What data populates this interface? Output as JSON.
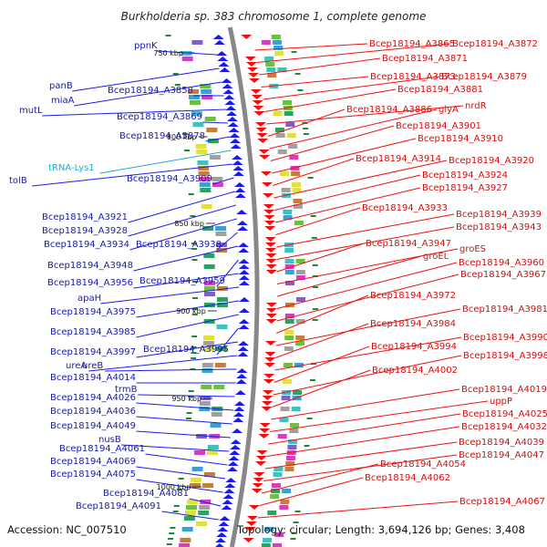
{
  "title": "Burkholderia sp. 383 chromosome 1, complete genome",
  "accession": "Accession: NC_007510",
  "summary": "Topology: circular; Length: 3,694,126 bp; Genes: 3,408",
  "ticks": [
    "750 kbp",
    "800 kbp",
    "850 kbp",
    "900 kbp",
    "950 kbp",
    "1000 kbp"
  ],
  "left_labels": [
    {
      "text": "ppnK",
      "color": "blue"
    },
    {
      "text": "panB",
      "color": "blue"
    },
    {
      "text": "miaA",
      "color": "blue"
    },
    {
      "text": "Bcep18194_A3858",
      "color": "blue"
    },
    {
      "text": "mutL",
      "color": "blue"
    },
    {
      "text": "Bcep18194_A3869",
      "color": "blue"
    },
    {
      "text": "Bcep18194_A3878",
      "color": "blue"
    },
    {
      "text": "tRNA-Lys1",
      "color": "cyan"
    },
    {
      "text": "tolB",
      "color": "blue"
    },
    {
      "text": "Bcep18194_A3909",
      "color": "blue"
    },
    {
      "text": "Bcep18194_A3921",
      "color": "blue"
    },
    {
      "text": "Bcep18194_A3928",
      "color": "blue"
    },
    {
      "text": "Bcep18194_A3934",
      "color": "blue"
    },
    {
      "text": "Bcep18194_A3938",
      "color": "blue"
    },
    {
      "text": "Bcep18194_A3948",
      "color": "blue"
    },
    {
      "text": "Bcep18194_A3959",
      "color": "blue"
    },
    {
      "text": "Bcep18194_A3956",
      "color": "blue"
    },
    {
      "text": "apaH",
      "color": "blue"
    },
    {
      "text": "Bcep18194_A3975",
      "color": "blue"
    },
    {
      "text": "Bcep18194_A3985",
      "color": "blue"
    },
    {
      "text": "Bcep18194_A3995",
      "color": "blue"
    },
    {
      "text": "Bcep18194_A3997",
      "color": "blue"
    },
    {
      "text": "ureA",
      "color": "blue"
    },
    {
      "text": "ureB",
      "color": "blue"
    },
    {
      "text": "Bcep18194_A4014",
      "color": "blue"
    },
    {
      "text": "trmB",
      "color": "blue"
    },
    {
      "text": "Bcep18194_A4026",
      "color": "blue"
    },
    {
      "text": "Bcep18194_A4036",
      "color": "blue"
    },
    {
      "text": "Bcep18194_A4049",
      "color": "blue"
    },
    {
      "text": "nusB",
      "color": "blue"
    },
    {
      "text": "Bcep18194_A4061",
      "color": "blue"
    },
    {
      "text": "Bcep18194_A4069",
      "color": "blue"
    },
    {
      "text": "Bcep18194_A4075",
      "color": "blue"
    },
    {
      "text": "Bcep18194_A4081",
      "color": "blue"
    },
    {
      "text": "Bcep18194_A4091",
      "color": "blue"
    }
  ],
  "right_labels": [
    {
      "text": "Bcep18194_A3865",
      "color": "red"
    },
    {
      "text": "Bcep18194_A3872",
      "color": "red"
    },
    {
      "text": "Bcep18194_A3871",
      "color": "red"
    },
    {
      "text": "Bcep18194_A3873",
      "color": "red"
    },
    {
      "text": "Bcep18194_A3879",
      "color": "red"
    },
    {
      "text": "Bcep18194_A3881",
      "color": "red"
    },
    {
      "text": "nrdR",
      "color": "red"
    },
    {
      "text": "Bcep18194_A3886",
      "color": "red"
    },
    {
      "text": "glyA",
      "color": "red"
    },
    {
      "text": "Bcep18194_A3901",
      "color": "red"
    },
    {
      "text": "Bcep18194_A3910",
      "color": "red"
    },
    {
      "text": "Bcep18194_A3914",
      "color": "red"
    },
    {
      "text": "Bcep18194_A3920",
      "color": "red"
    },
    {
      "text": "Bcep18194_A3924",
      "color": "red"
    },
    {
      "text": "Bcep18194_A3927",
      "color": "red"
    },
    {
      "text": "Bcep18194_A3933",
      "color": "red"
    },
    {
      "text": "Bcep18194_A3939",
      "color": "red"
    },
    {
      "text": "Bcep18194_A3943",
      "color": "red"
    },
    {
      "text": "Bcep18194_A3947",
      "color": "red"
    },
    {
      "text": "groES",
      "color": "red"
    },
    {
      "text": "groEL",
      "color": "red"
    },
    {
      "text": "Bcep18194_A3960",
      "color": "red"
    },
    {
      "text": "Bcep18194_A3967",
      "color": "red"
    },
    {
      "text": "Bcep18194_A3972",
      "color": "red"
    },
    {
      "text": "Bcep18194_A3981",
      "color": "red"
    },
    {
      "text": "Bcep18194_A3984",
      "color": "red"
    },
    {
      "text": "Bcep18194_A3990",
      "color": "red"
    },
    {
      "text": "Bcep18194_A3994",
      "color": "red"
    },
    {
      "text": "Bcep18194_A3998",
      "color": "red"
    },
    {
      "text": "Bcep18194_A4002",
      "color": "red"
    },
    {
      "text": "Bcep18194_A4019",
      "color": "red"
    },
    {
      "text": "uppP",
      "color": "red"
    },
    {
      "text": "Bcep18194_A4025",
      "color": "red"
    },
    {
      "text": "Bcep18194_A4032",
      "color": "red"
    },
    {
      "text": "Bcep18194_A4039",
      "color": "red"
    },
    {
      "text": "Bcep18194_A4047",
      "color": "red"
    },
    {
      "text": "Bcep18194_A4054",
      "color": "red"
    },
    {
      "text": "Bcep18194_A4062",
      "color": "red"
    },
    {
      "text": "Bcep18194_A4067",
      "color": "red"
    }
  ],
  "colors": {
    "forward_gene": "#1a1aee",
    "reverse_gene": "#ee1111",
    "backbone": "#888888",
    "tick_marks": "#228833",
    "rna_label": "#22aacc"
  }
}
